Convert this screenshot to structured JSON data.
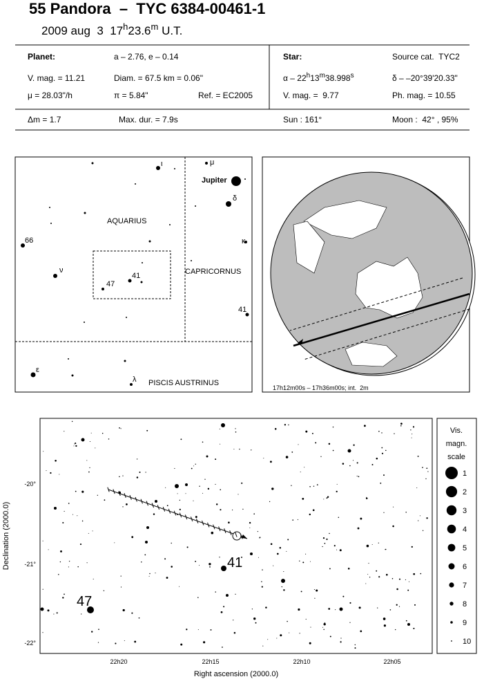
{
  "header": {
    "title": "55 Pandora  –  TYC 6384-00461-1",
    "date": [
      "2009 aug  3  17",
      "h",
      "23.6",
      "m",
      " U.T."
    ]
  },
  "planet": {
    "heading": "Planet:",
    "orbit": "a – 2.76, e – 0.14",
    "vmag": "V. mag. = 11.21",
    "diam": "Diam. = 67.5 km = 0.06\"",
    "mu": "μ = 28.03\"/h",
    "pi": "π = 5.84\"",
    "ref": "Ref. = EC2005",
    "dm": "Δm = 1.7",
    "maxdur": "Max. dur. = 7.9s"
  },
  "star": {
    "heading": "Star:",
    "source": "Source cat.  TYC2",
    "alpha": [
      "α – 22",
      "h",
      "13",
      "m",
      "38.998",
      "s"
    ],
    "delta": "δ – –20°39'20.33\"",
    "vmag": "V. mag. =  9.77",
    "phmag": "Ph. mag. = 10.55",
    "sun": "Sun : 161°",
    "moon": "Moon :  42° , 95%"
  },
  "finder": {
    "constellations": [
      "AQUARIUS",
      "CAPRICORNUS",
      "PISCIS AUSTRINUS"
    ],
    "jupiter": "Jupiter",
    "labels": [
      "ι",
      "μ",
      "δ",
      "κ",
      "66",
      "ν",
      "41",
      "47",
      "41",
      "ε",
      "λ"
    ]
  },
  "globe": {
    "caption": "17h12m00s – 17h36m00s; int.  2m"
  },
  "detail": {
    "ylabel": "Declination (2000.0)",
    "xlabel": "Right ascension (2000.0)",
    "yticks": [
      "-20°",
      "-21°",
      "-22°"
    ],
    "xticks": [
      "22h20",
      "22h15",
      "22h10",
      "22h05"
    ],
    "labels": [
      "47",
      "41"
    ]
  },
  "legend": {
    "title": [
      "Vis.",
      "magn.",
      "scale"
    ],
    "magnitudes": [
      1,
      2,
      3,
      4,
      5,
      6,
      7,
      8,
      9,
      10
    ]
  }
}
